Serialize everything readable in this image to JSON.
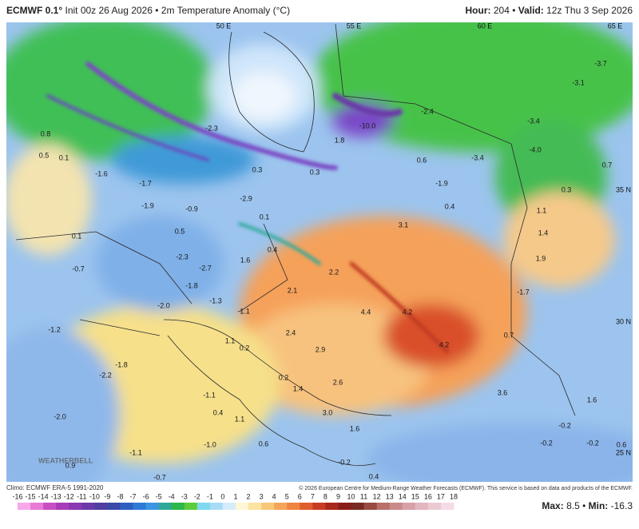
{
  "header": {
    "model": "ECMWF 0.1°",
    "subtitle": "Init 00z 26 Aug 2026 • 2m Temperature Anomaly (°C)",
    "hour_label": "Hour:",
    "hour": "204",
    "separator": "•",
    "valid_label": "Valid:",
    "valid": "12z Thu 3 Sep 2026"
  },
  "map": {
    "grid_labels": [
      "50 E",
      "55 E",
      "60 E",
      "65 E",
      "35 N",
      "30 N",
      "25 N"
    ],
    "values": [
      "0.8",
      "0.5",
      "0.1",
      "-1.6",
      "-1.7",
      "-1.9",
      "-0.9",
      "0.5",
      "-2.3",
      "-2.7",
      "-1.8",
      "-1.3",
      "-2.0",
      "-1.2",
      "-1.8",
      "-2.2",
      "-2.0",
      "-1.0",
      "-1.1",
      "0.9",
      "-0.7",
      "-0.7",
      "0.1",
      "1.6",
      "0.4",
      "2.2",
      "2.1",
      "-1.1",
      "2.4",
      "1.1",
      "0.2",
      "2.9",
      "0.2",
      "2.6",
      "1.4",
      "3.0",
      "1.6",
      "0.4",
      "1.1",
      "4.4",
      "4.2",
      "4.2",
      "3.6",
      "0.7",
      "1.6",
      "-1.7",
      "1.9",
      "1.4",
      "1.1",
      "0.3",
      "0.7",
      "-4.0",
      "-3.4",
      "-3.1",
      "-3.7",
      "-3.4",
      "0.6",
      "-1.9",
      "0.4",
      "3.1",
      "-10.0",
      "1.8",
      "0.3",
      "0.3",
      "-2.3",
      "-2.9",
      "0.1",
      "-2.4",
      "-0.2",
      "-0.2",
      "0.6",
      "-0.2",
      "-1.1",
      "0.6",
      "-0.2",
      "0.4"
    ],
    "logo": "WEATHERBELL"
  },
  "footer": {
    "climo": "Climo: ECMWF ERA-5 1991-2020",
    "copyright": "© 2026 European Centre for Medium-Range Weather Forecasts (ECMWF). This service is based on data and products of the ECMWF.",
    "max_label": "Max:",
    "max": "8.5",
    "separator": "•",
    "min_label": "Min:",
    "min": "-16.3"
  },
  "colorbar": {
    "ticks": [
      -16,
      -15,
      -14,
      -13,
      -12,
      -11,
      -10,
      -9,
      -8,
      -7,
      -6,
      -5,
      -4,
      -3,
      -2,
      -1,
      0,
      1,
      2,
      3,
      4,
      5,
      6,
      7,
      8,
      9,
      10,
      11,
      12,
      13,
      14,
      15,
      16,
      17,
      18
    ],
    "colors": [
      "#f7a8e8",
      "#e77ad6",
      "#c94ec4",
      "#a83cb8",
      "#8a38b4",
      "#6a3aa8",
      "#4e3fa0",
      "#3a4aa8",
      "#2e5fc0",
      "#2f7ad6",
      "#3b95e2",
      "#2fa89a",
      "#2cb84a",
      "#5ccc3a",
      "#7fd8f0",
      "#a7dcf6",
      "#d4ecfb",
      "#fff6d4",
      "#fbe3a0",
      "#f8c878",
      "#f5a55a",
      "#ee8440",
      "#e05e2e",
      "#c83c24",
      "#a8281c",
      "#881c18",
      "#7a2a24",
      "#9a4a40",
      "#b87068",
      "#c88a8a",
      "#d8a0a8",
      "#e4b6c0",
      "#eccad4",
      "#f4dce6"
    ]
  }
}
